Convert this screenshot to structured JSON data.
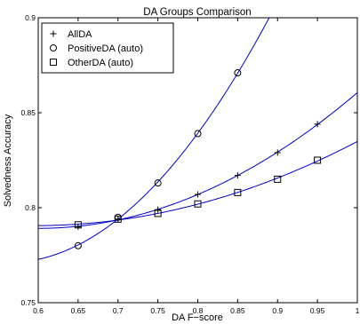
{
  "chart_data": {
    "type": "line",
    "title": "DA Groups Comparison",
    "xlabel": "DA F−score",
    "ylabel": "Solvedness Accuracy",
    "xlim": [
      0.6,
      1.0
    ],
    "ylim": [
      0.75,
      0.9
    ],
    "xticks": [
      "0.6",
      "0.65",
      "0.7",
      "0.75",
      "0.8",
      "0.85",
      "0.9",
      "0.95",
      "1"
    ],
    "yticks": [
      "0.75",
      "0.8",
      "0.85",
      "0.9"
    ],
    "grid": false,
    "legend_position": "top-left",
    "series": [
      {
        "name": "AllDA",
        "marker": "plus",
        "color": "#000000",
        "fit_color": "#0000cc",
        "x": [
          0.65,
          0.7,
          0.75,
          0.8,
          0.85,
          0.9,
          0.95
        ],
        "y": [
          0.79,
          0.794,
          0.799,
          0.807,
          0.817,
          0.829,
          0.844
        ]
      },
      {
        "name": "PositiveDA (auto)",
        "marker": "circle",
        "color": "#000000",
        "fit_color": "#0000cc",
        "x": [
          0.65,
          0.7,
          0.75,
          0.8,
          0.85
        ],
        "y": [
          0.78,
          0.795,
          0.813,
          0.839,
          0.871
        ]
      },
      {
        "name": "OtherDA (auto)",
        "marker": "square",
        "color": "#000000",
        "fit_color": "#0000cc",
        "x": [
          0.65,
          0.7,
          0.75,
          0.8,
          0.85,
          0.9,
          0.95
        ],
        "y": [
          0.791,
          0.794,
          0.797,
          0.802,
          0.808,
          0.815,
          0.825
        ]
      }
    ]
  }
}
